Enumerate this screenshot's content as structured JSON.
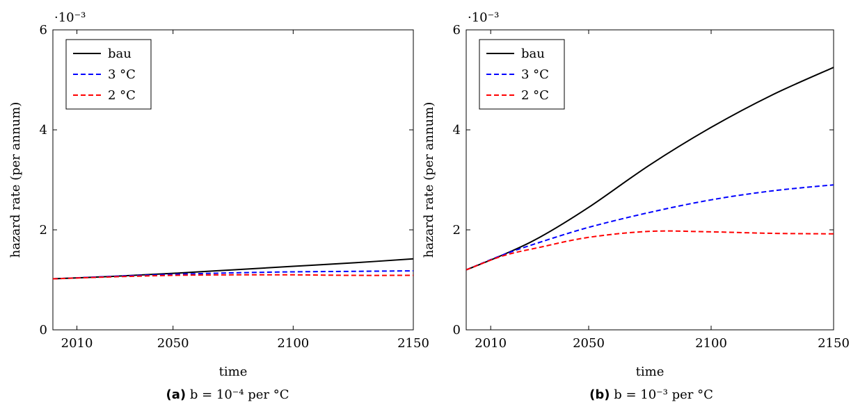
{
  "chart_data": [
    {
      "type": "line",
      "panel_tag": "(a)",
      "caption": "b = 10⁻⁴ per °C",
      "xlabel": "time",
      "ylabel": "hazard rate (per annum)",
      "y_multiplier": "·10⁻³",
      "xlim": [
        2000,
        2150
      ],
      "ylim": [
        0,
        6
      ],
      "xticks": [
        2010,
        2050,
        2100,
        2150
      ],
      "yticks": [
        0,
        2,
        4,
        6
      ],
      "grid": false,
      "legend_position": "top-left",
      "series": [
        {
          "name": "bau",
          "color": "#000000",
          "dash": "solid",
          "x": [
            2000,
            2025,
            2050,
            2075,
            2100,
            2125,
            2150
          ],
          "y": [
            1.02,
            1.07,
            1.13,
            1.2,
            1.27,
            1.34,
            1.42
          ]
        },
        {
          "name": "3 °C",
          "color": "#0000ff",
          "dash": "dashed",
          "x": [
            2000,
            2025,
            2050,
            2075,
            2100,
            2125,
            2150
          ],
          "y": [
            1.02,
            1.07,
            1.11,
            1.14,
            1.16,
            1.17,
            1.18
          ]
        },
        {
          "name": "2 °C",
          "color": "#ff0000",
          "dash": "dashed",
          "x": [
            2000,
            2025,
            2050,
            2075,
            2100,
            2125,
            2150
          ],
          "y": [
            1.02,
            1.06,
            1.09,
            1.1,
            1.1,
            1.09,
            1.09
          ]
        }
      ]
    },
    {
      "type": "line",
      "panel_tag": "(b)",
      "caption": "b = 10⁻³ per °C",
      "xlabel": "time",
      "ylabel": "hazard rate (per annum)",
      "y_multiplier": "·10⁻³",
      "xlim": [
        2000,
        2150
      ],
      "ylim": [
        0,
        6
      ],
      "xticks": [
        2010,
        2050,
        2100,
        2150
      ],
      "yticks": [
        0,
        2,
        4,
        6
      ],
      "grid": false,
      "legend_position": "top-left",
      "series": [
        {
          "name": "bau",
          "color": "#000000",
          "dash": "solid",
          "x": [
            2000,
            2015,
            2030,
            2050,
            2075,
            2100,
            2125,
            2150
          ],
          "y": [
            1.2,
            1.5,
            1.85,
            2.45,
            3.3,
            4.05,
            4.7,
            5.25
          ]
        },
        {
          "name": "3 °C",
          "color": "#0000ff",
          "dash": "dashed",
          "x": [
            2000,
            2015,
            2030,
            2050,
            2075,
            2100,
            2125,
            2150
          ],
          "y": [
            1.2,
            1.5,
            1.75,
            2.05,
            2.35,
            2.6,
            2.78,
            2.9
          ]
        },
        {
          "name": "2 °C",
          "color": "#ff0000",
          "dash": "dashed",
          "x": [
            2000,
            2015,
            2030,
            2050,
            2075,
            2100,
            2125,
            2150
          ],
          "y": [
            1.2,
            1.48,
            1.65,
            1.85,
            1.97,
            1.96,
            1.93,
            1.92
          ]
        }
      ]
    }
  ]
}
